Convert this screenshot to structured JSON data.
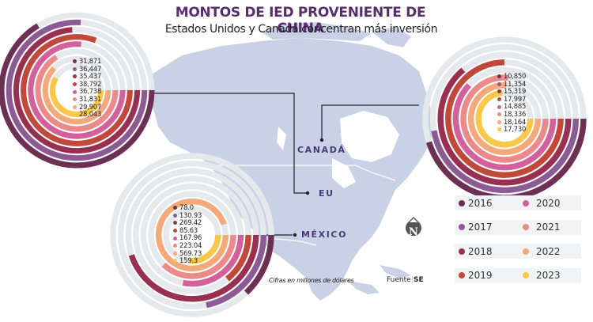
{
  "header": {
    "title": "MONTOS DE IED PROVENIENTE DE CHINA",
    "subtitle": "Estados Unidos y Canadá concentran más inversión"
  },
  "colors": {
    "2016": "#6e2f55",
    "2017": "#8c5a95",
    "2018": "#9a3051",
    "2019": "#c2483a",
    "2020": "#d2609a",
    "2021": "#ec8a8a",
    "2022": "#f4a97a",
    "2023": "#fbc748",
    "track": "#e5e9eb",
    "map": "#c9d1e6",
    "title": "#5a2e6e",
    "country_label": "#4b3a78"
  },
  "labels": {
    "canada": "CANADÁ",
    "eu": "EU",
    "mexico": "MÉXICO"
  },
  "footer": {
    "note": "Cifras en millones de dólares",
    "source_prefix": "Fuente",
    "source_sep": "|",
    "source_name": "SE"
  },
  "legend": {
    "items": [
      {
        "year": "2016",
        "color": "#6e2f55"
      },
      {
        "year": "2020",
        "color": "#d2609a"
      },
      {
        "year": "2017",
        "color": "#8c5a95"
      },
      {
        "year": "2021",
        "color": "#ec8a8a"
      },
      {
        "year": "2018",
        "color": "#9a3051"
      },
      {
        "year": "2022",
        "color": "#f4a97a"
      },
      {
        "year": "2019",
        "color": "#c2483a"
      },
      {
        "year": "2023",
        "color": "#fbc748"
      }
    ]
  },
  "chart_data": [
    {
      "type": "radial-bar",
      "title": "EU (Estados Unidos)",
      "unit": "millones de dólares",
      "categories": [
        "2016",
        "2017",
        "2018",
        "2019",
        "2020",
        "2021",
        "2022",
        "2023"
      ],
      "values": [
        31871,
        36447,
        35437,
        38792,
        36738,
        31831,
        29907,
        28043
      ],
      "value_labels": [
        "31,871",
        "36,447",
        "35,437",
        "38,792",
        "36,738",
        "31,831",
        "29,907",
        "28,043"
      ],
      "scale_max": 48000
    },
    {
      "type": "radial-bar",
      "title": "Canadá",
      "unit": "millones de dólares",
      "categories": [
        "2016",
        "2017",
        "2018",
        "2019",
        "2020",
        "2021",
        "2022",
        "2023"
      ],
      "values": [
        10850,
        11354,
        15319,
        17997,
        14885,
        18336,
        18164,
        17730
      ],
      "value_labels": [
        "10,850",
        "11,354",
        "15,319",
        "17,997",
        "14,885",
        "18,336",
        "18,164",
        "17,730"
      ],
      "scale_max": 24000
    },
    {
      "type": "radial-bar",
      "title": "México",
      "unit": "millones de dólares",
      "categories": [
        "2016",
        "2017",
        "2018",
        "2019",
        "2020",
        "2021",
        "2022",
        "2023"
      ],
      "values": [
        78.0,
        130.93,
        269.42,
        85.63,
        167.96,
        223.04,
        569.73,
        159.3
      ],
      "value_labels": [
        "78.0",
        "130.93",
        "269.42",
        "85.63",
        "167.96",
        "223.04",
        "569.73",
        "159.3"
      ],
      "scale_max": 600
    }
  ]
}
